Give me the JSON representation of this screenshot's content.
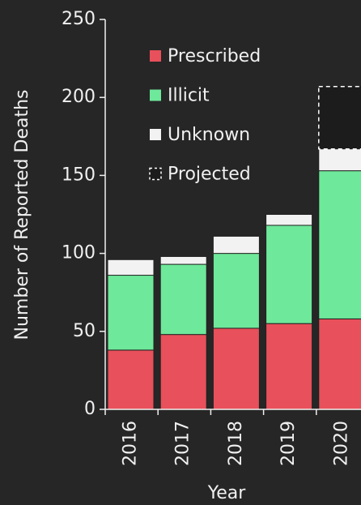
{
  "chart_data": {
    "type": "stacked_bar",
    "x_label": "Year",
    "y_label": "Number of Reported Deaths",
    "categories": [
      "2016",
      "2017",
      "2018",
      "2019",
      "2020"
    ],
    "series": [
      {
        "name": "Prescribed",
        "color": "#e8505b",
        "values": [
          38,
          48,
          52,
          55,
          58
        ]
      },
      {
        "name": "Illicit",
        "color": "#6ee89a",
        "values": [
          48,
          45,
          48,
          63,
          95
        ]
      },
      {
        "name": "Unknown",
        "color": "#f2f2f2",
        "values": [
          10,
          5,
          11,
          7,
          14
        ]
      },
      {
        "name": "Projected",
        "color": "#1c1c1c",
        "edge_style": "dashed",
        "values": [
          null,
          null,
          null,
          null,
          40
        ]
      }
    ],
    "ylim": [
      0,
      250
    ],
    "yticks": [
      0,
      50,
      100,
      150,
      200,
      250
    ],
    "legend": "upper left"
  }
}
